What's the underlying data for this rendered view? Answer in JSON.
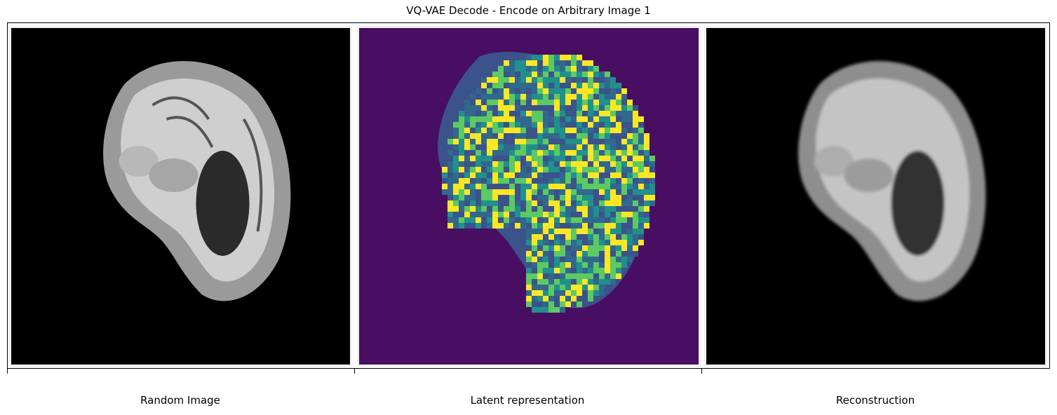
{
  "title": "VQ-VAE Decode - Encode on Arbitrary Image 1",
  "panels": [
    {
      "label": "Random Image",
      "content": "grayscale sagittal brain MRI slice"
    },
    {
      "label": "Latent representation",
      "content": "viridis latent code map"
    },
    {
      "label": "Reconstruction",
      "content": "reconstructed grayscale brain MRI slice"
    }
  ],
  "colors": {
    "latent_background": "#470e61",
    "latent_palette": [
      "#3b528b",
      "#21908d",
      "#5dc962",
      "#fde725",
      "#31688e",
      "#440154"
    ]
  }
}
